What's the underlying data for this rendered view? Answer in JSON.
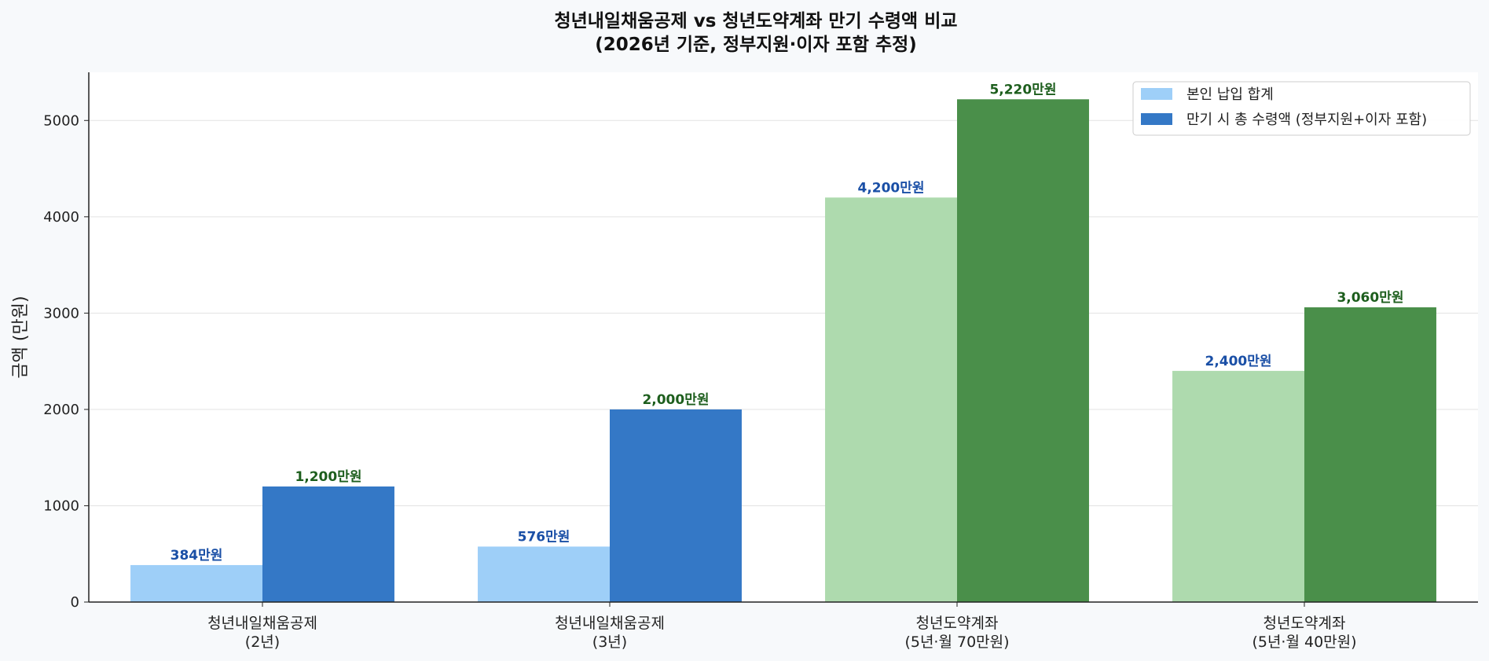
{
  "chart_data": {
    "type": "bar",
    "title": "청년내일채움공제 vs 청년도약계좌 만기 수령액 비교",
    "subtitle": "(2026년 기준, 정부지원·이자 포함 추정)",
    "xlabel": "",
    "ylabel": "금액 (만원)",
    "ylim": [
      0,
      5500
    ],
    "yticks": [
      0,
      1000,
      2000,
      3000,
      4000,
      5000
    ],
    "grid": true,
    "legend_position": "top-right",
    "categories": [
      [
        "청년내일채움공제",
        "(2년)"
      ],
      [
        "청년내일채움공제",
        "(3년)"
      ],
      [
        "청년도약계좌",
        "(5년·월 70만원)"
      ],
      [
        "청년도약계좌",
        "(5년·월 40만원)"
      ]
    ],
    "series": [
      {
        "name": "본인 납입 합계",
        "values": [
          384,
          576,
          4200,
          2400
        ],
        "labels": [
          "384만원",
          "576만원",
          "4,200만원",
          "2,400만원"
        ],
        "colors": [
          "#9ecff8",
          "#9ecff8",
          "#aedaae",
          "#aedaae"
        ],
        "label_color": "#1a4fa6"
      },
      {
        "name": "만기 시 총 수령액 (정부지원+이자 포함)",
        "values": [
          1200,
          2000,
          5220,
          3060
        ],
        "labels": [
          "1,200만원",
          "2,000만원",
          "5,220만원",
          "3,060만원"
        ],
        "colors": [
          "#3478c6",
          "#3478c6",
          "#4a8f4a",
          "#4a8f4a"
        ],
        "label_color": "#1d5e1d"
      }
    ]
  }
}
